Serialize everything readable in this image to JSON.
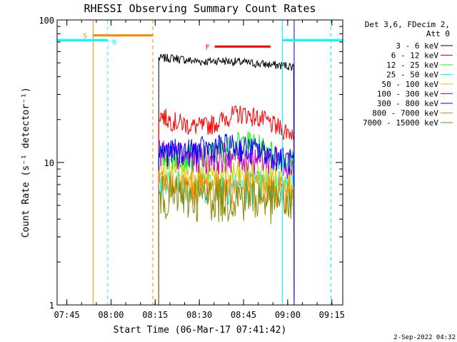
{
  "chart_data": {
    "type": "line",
    "title": "RHESSI Observing Summary Count Rates",
    "xlabel": "Start Time (06-Mar-17 07:41:42)",
    "ylabel": "Count Rate (s⁻¹ detector⁻¹)",
    "x_unit": "minutes after 07:41:42",
    "xlim": [
      0,
      97
    ],
    "ylim": [
      1,
      100
    ],
    "yscale": "log",
    "x_ticks": [
      {
        "label": "07:45",
        "value": 3.3
      },
      {
        "label": "08:00",
        "value": 18.3
      },
      {
        "label": "08:15",
        "value": 33.3
      },
      {
        "label": "08:30",
        "value": 48.3
      },
      {
        "label": "08:45",
        "value": 63.3
      },
      {
        "label": "09:00",
        "value": 78.3
      },
      {
        "label": "09:15",
        "value": 93.3
      }
    ],
    "y_ticks": [
      {
        "label": "1",
        "value": 1
      },
      {
        "label": "10",
        "value": 10
      },
      {
        "label": "100",
        "value": 100
      }
    ],
    "legend_header": [
      "Det 3,6, FDecim 2,",
      "Att 0"
    ],
    "legend_position": "right",
    "series": [
      {
        "name": "3 - 6 keV",
        "color": "#000000",
        "x": [
          34.5,
          40,
          45,
          50,
          55,
          60,
          65,
          70,
          75,
          78,
          80.5
        ],
        "values": [
          54,
          54,
          52,
          51,
          52,
          51,
          50,
          49,
          48,
          48,
          47
        ]
      },
      {
        "name": "6 - 12 keV",
        "color": "#ff0000",
        "x": [
          34.5,
          38,
          42,
          46,
          50,
          54,
          58,
          61,
          64,
          67,
          70,
          74,
          77,
          80.5
        ],
        "values": [
          22,
          20,
          19,
          18,
          18,
          19,
          21,
          22,
          22,
          21,
          20,
          18,
          17,
          16
        ]
      },
      {
        "name": "12 - 25 keV",
        "color": "#00ff00",
        "x": [
          34.5,
          40,
          45,
          50,
          55,
          60,
          64,
          68,
          72,
          76,
          80.5
        ],
        "values": [
          11,
          11,
          11,
          11,
          12,
          13,
          14,
          13,
          12,
          11,
          10
        ]
      },
      {
        "name": "25 - 50 keV",
        "color": "#00ffff",
        "x": [
          34.5,
          45,
          55,
          65,
          75,
          80.5
        ],
        "values": [
          7,
          7,
          7,
          7,
          6.8,
          6.5
        ]
      },
      {
        "name": "50 - 100 keV",
        "color": "#cccc00",
        "x": [
          34.5,
          45,
          55,
          65,
          75,
          80.5
        ],
        "values": [
          8.5,
          8.2,
          8.2,
          8.2,
          7.8,
          7.5
        ]
      },
      {
        "name": "100 - 300 keV",
        "color": "#cc00cc",
        "x": [
          34.5,
          45,
          55,
          65,
          75,
          80.5
        ],
        "values": [
          11.5,
          11,
          11,
          11,
          10.5,
          10
        ]
      },
      {
        "name": "300 - 800 keV",
        "color": "#0000ff",
        "x": [
          34.5,
          40,
          45,
          50,
          55,
          60,
          65,
          70,
          75,
          80.5
        ],
        "values": [
          12,
          12,
          12,
          12.5,
          13,
          13,
          12.5,
          12,
          11,
          10
        ]
      },
      {
        "name": "800 - 7000 keV",
        "color": "#ff8800",
        "x": [
          34.5,
          45,
          55,
          65,
          75,
          80.5
        ],
        "values": [
          7,
          6.8,
          6.8,
          6.8,
          6.4,
          6
        ]
      },
      {
        "name": "7000 - 15000 keV",
        "color": "#888800",
        "x": [
          34.5,
          45,
          55,
          65,
          75,
          80.5
        ],
        "values": [
          6,
          5.8,
          5.8,
          5.8,
          5.5,
          5
        ]
      }
    ],
    "intervals": [
      {
        "label": "S",
        "color": "#ff8800",
        "start": 12.2,
        "end": 32.5,
        "value": 78
      },
      {
        "label": "N",
        "color": "#00ffff",
        "start": 0,
        "end": 17.2,
        "value": 72
      },
      {
        "label": "N",
        "color": "#00ffff",
        "start": 76.5,
        "end": 97,
        "value": 72
      },
      {
        "label": "F",
        "color": "#ff0000",
        "start": 53.5,
        "end": 72.5,
        "value": 65
      }
    ],
    "markers": [
      {
        "color": "#00ffff",
        "x": 0,
        "style": "solid"
      },
      {
        "color": "#ff8800",
        "x": 12.2,
        "style": "solid"
      },
      {
        "color": "#00ffff",
        "x": 17.2,
        "style": "dashed"
      },
      {
        "color": "#ff8800",
        "x": 32.5,
        "style": "dashed"
      },
      {
        "color": "#00ffff",
        "x": 76.5,
        "style": "solid"
      },
      {
        "color": "#0000ff",
        "x": 80.5,
        "style": "solid"
      },
      {
        "color": "#00ffff",
        "x": 93,
        "style": "dashed"
      }
    ],
    "footer_date": "2-Sep-2022 04:32"
  }
}
